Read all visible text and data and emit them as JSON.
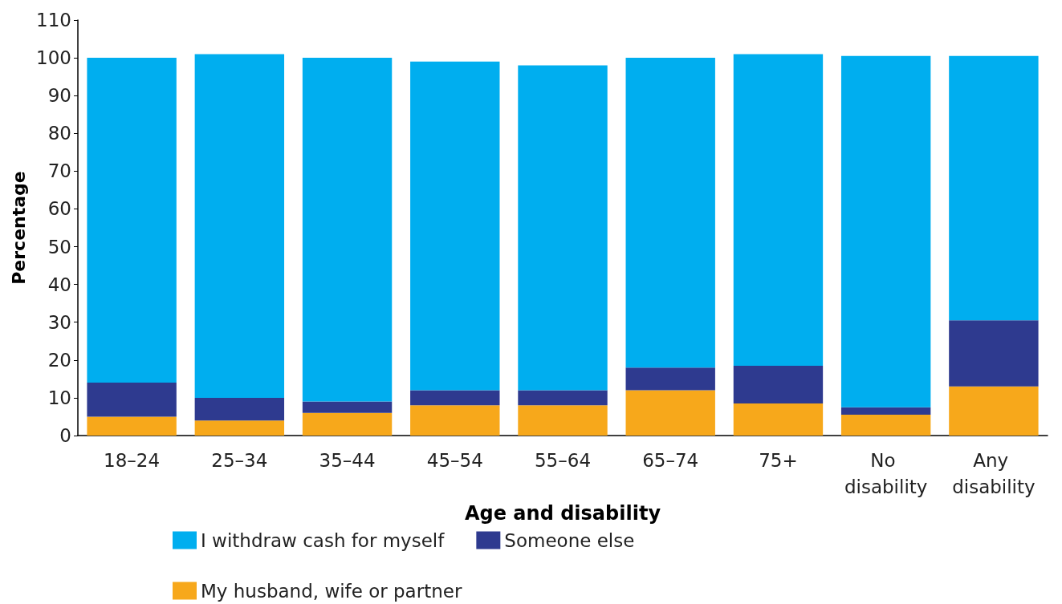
{
  "chart_data": {
    "type": "bar",
    "stacked": true,
    "xlabel": "Age and disability",
    "ylabel": "Percentage",
    "categories": [
      "18–24",
      "25–34",
      "35–44",
      "45–54",
      "55–64",
      "65–74",
      "75+",
      "No disability",
      "Any disability"
    ],
    "series": [
      {
        "name": "My husband, wife or partner",
        "color": "#f7a81b",
        "values": [
          5,
          4,
          6,
          8,
          8,
          12,
          8.5,
          5.5,
          13
        ]
      },
      {
        "name": "Someone else",
        "color": "#2e3a8f",
        "values": [
          9,
          6,
          3,
          4,
          4,
          6,
          10,
          2,
          17.5
        ]
      },
      {
        "name": "I withdraw cash for myself",
        "color": "#00aeef",
        "values": [
          86,
          91,
          91,
          87,
          86,
          82,
          82.5,
          93,
          70
        ]
      }
    ],
    "ylim": [
      0,
      110
    ],
    "yticks": [
      0,
      10,
      20,
      30,
      40,
      50,
      60,
      70,
      80,
      90,
      100,
      110
    ],
    "grid": false,
    "legend": "bottom"
  }
}
